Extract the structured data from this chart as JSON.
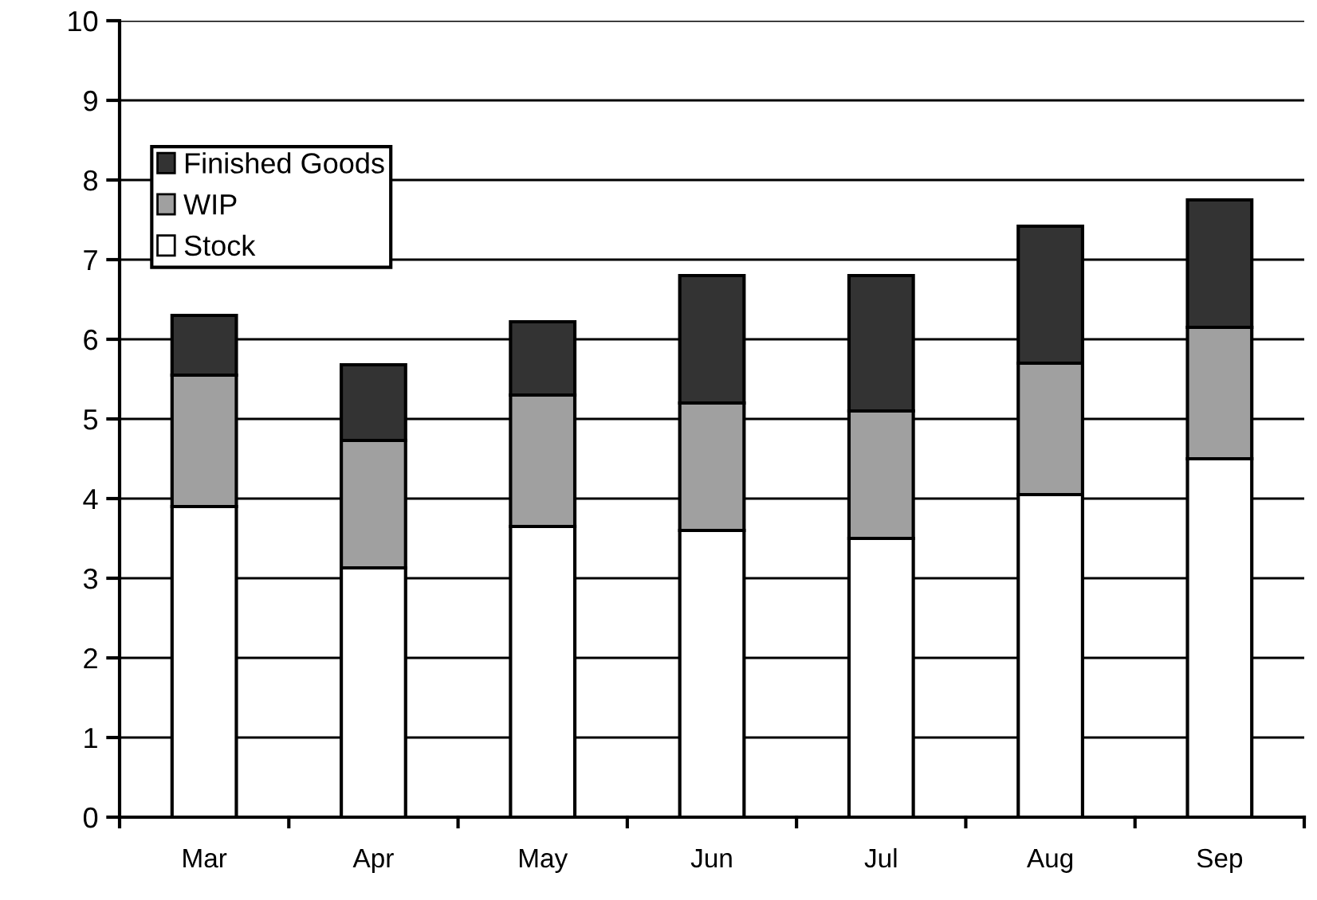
{
  "chart_data": {
    "type": "bar",
    "stacked": true,
    "categories": [
      "Mar",
      "Apr",
      "May",
      "Jun",
      "Jul",
      "Aug",
      "Sep"
    ],
    "series": [
      {
        "name": "Stock",
        "color": "#ffffff",
        "values": [
          3.9,
          3.13,
          3.65,
          3.6,
          3.5,
          4.05,
          4.5
        ]
      },
      {
        "name": "WIP",
        "color": "#a0a0a0",
        "values": [
          1.65,
          1.6,
          1.65,
          1.6,
          1.6,
          1.65,
          1.65
        ]
      },
      {
        "name": "Finished Goods",
        "color": "#333333",
        "values": [
          0.75,
          0.95,
          0.92,
          1.6,
          1.7,
          1.72,
          1.6
        ]
      }
    ],
    "ylim": [
      0,
      10
    ],
    "yticks": [
      0,
      1,
      2,
      3,
      4,
      5,
      6,
      7,
      8,
      9,
      10
    ],
    "grid": "y",
    "legend": "top left"
  }
}
